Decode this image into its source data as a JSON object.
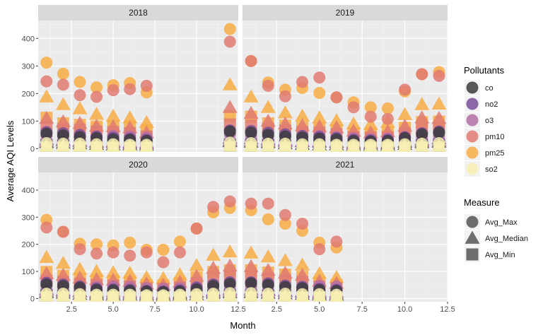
{
  "chart_data": {
    "type": "scatter",
    "xlabel": "Month",
    "ylabel": "Average AQI Levels",
    "xlim": [
      0.5,
      12.5
    ],
    "ylim": [
      -12,
      465
    ],
    "x_ticks": [
      2.5,
      5.0,
      7.5,
      10.0,
      12.5
    ],
    "x_tick_labels": [
      "2.5",
      "5.0",
      "7.5",
      "10.0",
      "12.5"
    ],
    "y_ticks": [
      0,
      100,
      200,
      300,
      400
    ],
    "y_tick_labels": [
      "0",
      "100",
      "200",
      "300",
      "400"
    ],
    "grid": true,
    "facet_by": "year",
    "facets": [
      {
        "label": "2018",
        "months": [
          1,
          2,
          3,
          4,
          5,
          6,
          7,
          12
        ],
        "series": {
          "pm25": {
            "Avg_Max": [
              312,
              272,
              242,
              222,
              230,
              238,
              204,
              434
            ],
            "Avg_Median": [
              188,
              160,
              145,
              125,
              118,
              112,
              95,
              232
            ],
            "Avg_Min": [
              112,
              92,
              86,
              80,
              82,
              80,
              66,
              118
            ]
          },
          "pm10": {
            "Avg_Max": [
              244,
              232,
              194,
              188,
              212,
              216,
              228,
              388
            ],
            "Avg_Median": [
              110,
              98,
              92,
              82,
              80,
              76,
              58,
              150
            ],
            "Avg_Min": [
              78,
              70,
              68,
              62,
              60,
              56,
              44,
              88
            ]
          },
          "o3": {
            "Avg_Max": [
              48,
              46,
              44,
              42,
              46,
              44,
              40,
              52
            ],
            "Avg_Median": [
              28,
              28,
              26,
              24,
              26,
              24,
              22,
              30
            ],
            "Avg_Min": [
              14,
              14,
              12,
              12,
              12,
              12,
              10,
              14
            ]
          },
          "no2": {
            "Avg_Max": [
              60,
              56,
              50,
              44,
              40,
              36,
              32,
              66
            ],
            "Avg_Median": [
              34,
              32,
              28,
              24,
              22,
              20,
              18,
              38
            ],
            "Avg_Min": [
              14,
              12,
              12,
              10,
              10,
              8,
              8,
              16
            ]
          },
          "co": {
            "Avg_Max": [
              54,
              48,
              42,
              38,
              34,
              32,
              28,
              62
            ],
            "Avg_Median": [
              22,
              20,
              18,
              16,
              14,
              14,
              12,
              26
            ],
            "Avg_Min": [
              8,
              8,
              6,
              6,
              6,
              6,
              4,
              10
            ]
          },
          "so2": {
            "Avg_Max": [
              20,
              18,
              18,
              16,
              16,
              14,
              14,
              22
            ],
            "Avg_Median": [
              10,
              10,
              10,
              8,
              8,
              8,
              8,
              12
            ],
            "Avg_Min": [
              4,
              4,
              4,
              4,
              4,
              4,
              4,
              5
            ]
          }
        }
      },
      {
        "label": "2019",
        "months": [
          1,
          2,
          3,
          4,
          5,
          6,
          7,
          8,
          9,
          10,
          11,
          12
        ],
        "series": {
          "pm25": {
            "Avg_Max": [
              318,
              240,
              214,
              220,
              202,
              186,
              168,
              150,
              146,
              208,
              270,
              278
            ],
            "Avg_Median": [
              188,
              150,
              130,
              118,
              112,
              102,
              90,
              88,
              96,
              124,
              160,
              162
            ],
            "Avg_Min": [
              116,
              92,
              84,
              76,
              74,
              66,
              56,
              56,
              58,
              76,
              96,
              98
            ]
          },
          "pm10": {
            "Avg_Max": [
              318,
              228,
              190,
              242,
              258,
              186,
              150,
              116,
              108,
              214,
              270,
              264
            ],
            "Avg_Median": [
              128,
              100,
              90,
              84,
              80,
              76,
              64,
              58,
              62,
              82,
              112,
              110
            ],
            "Avg_Min": [
              84,
              72,
              66,
              60,
              58,
              52,
              42,
              40,
              42,
              56,
              72,
              74
            ]
          },
          "o3": {
            "Avg_Max": [
              46,
              46,
              44,
              44,
              46,
              42,
              38,
              34,
              36,
              40,
              44,
              46
            ],
            "Avg_Median": [
              28,
              28,
              26,
              26,
              26,
              24,
              22,
              20,
              20,
              24,
              26,
              28
            ],
            "Avg_Min": [
              14,
              14,
              12,
              12,
              12,
              12,
              10,
              10,
              10,
              12,
              14,
              14
            ]
          },
          "no2": {
            "Avg_Max": [
              64,
              58,
              52,
              46,
              42,
              38,
              32,
              30,
              32,
              42,
              56,
              62
            ],
            "Avg_Median": [
              36,
              34,
              30,
              26,
              24,
              22,
              18,
              18,
              18,
              24,
              32,
              36
            ],
            "Avg_Min": [
              16,
              14,
              12,
              10,
              10,
              8,
              8,
              8,
              8,
              10,
              14,
              16
            ]
          },
          "co": {
            "Avg_Max": [
              58,
              50,
              44,
              40,
              36,
              34,
              28,
              26,
              28,
              38,
              52,
              58
            ],
            "Avg_Median": [
              24,
              22,
              18,
              16,
              14,
              14,
              12,
              12,
              12,
              16,
              22,
              24
            ],
            "Avg_Min": [
              8,
              8,
              6,
              6,
              6,
              6,
              4,
              4,
              4,
              6,
              8,
              8
            ]
          },
          "so2": {
            "Avg_Max": [
              20,
              18,
              18,
              16,
              16,
              14,
              14,
              14,
              14,
              16,
              18,
              20
            ],
            "Avg_Median": [
              10,
              10,
              10,
              8,
              8,
              8,
              8,
              8,
              8,
              8,
              10,
              10
            ],
            "Avg_Min": [
              4,
              4,
              4,
              4,
              4,
              4,
              4,
              4,
              4,
              4,
              4,
              4
            ]
          }
        }
      },
      {
        "label": "2020",
        "months": [
          1,
          2,
          3,
          4,
          5,
          6,
          7,
          8,
          9,
          10,
          11,
          12
        ],
        "series": {
          "pm25": {
            "Avg_Max": [
              290,
              246,
              202,
              200,
              196,
              206,
              180,
              180,
              210,
              258,
              318,
              334
            ],
            "Avg_Median": [
              152,
              130,
              108,
              100,
              96,
              94,
              78,
              74,
              88,
              122,
              160,
              172
            ],
            "Avg_Min": [
              98,
              84,
              72,
              66,
              64,
              62,
              50,
              48,
              56,
              78,
              98,
              104
            ]
          },
          "pm10": {
            "Avg_Max": [
              262,
              246,
              182,
              166,
              170,
              158,
              170,
              134,
              170,
              258,
              338,
              358
            ],
            "Avg_Median": [
              92,
              86,
              76,
              70,
              68,
              64,
              54,
              50,
              60,
              82,
              112,
              120
            ],
            "Avg_Min": [
              66,
              60,
              54,
              50,
              48,
              44,
              38,
              36,
              42,
              56,
              74,
              80
            ]
          },
          "o3": {
            "Avg_Max": [
              46,
              44,
              42,
              42,
              44,
              42,
              38,
              36,
              38,
              42,
              44,
              46
            ],
            "Avg_Median": [
              28,
              26,
              26,
              24,
              26,
              24,
              22,
              20,
              22,
              24,
              26,
              28
            ],
            "Avg_Min": [
              14,
              12,
              12,
              12,
              12,
              12,
              10,
              10,
              10,
              12,
              14,
              14
            ]
          },
          "no2": {
            "Avg_Max": [
              58,
              52,
              44,
              36,
              34,
              32,
              28,
              26,
              30,
              40,
              52,
              60
            ],
            "Avg_Median": [
              34,
              30,
              26,
              20,
              18,
              18,
              16,
              16,
              18,
              24,
              30,
              34
            ],
            "Avg_Min": [
              14,
              12,
              10,
              8,
              8,
              8,
              6,
              6,
              8,
              10,
              12,
              14
            ]
          },
          "co": {
            "Avg_Max": [
              52,
              46,
              40,
              32,
              30,
              28,
              26,
              24,
              26,
              34,
              46,
              54
            ],
            "Avg_Median": [
              22,
              20,
              16,
              14,
              12,
              12,
              10,
              10,
              12,
              14,
              20,
              22
            ],
            "Avg_Min": [
              8,
              6,
              6,
              4,
              4,
              4,
              4,
              4,
              4,
              6,
              8,
              8
            ]
          },
          "so2": {
            "Avg_Max": [
              18,
              18,
              16,
              14,
              14,
              14,
              12,
              12,
              14,
              16,
              18,
              20
            ],
            "Avg_Median": [
              10,
              10,
              8,
              8,
              8,
              8,
              6,
              6,
              8,
              8,
              10,
              10
            ],
            "Avg_Min": [
              4,
              4,
              4,
              4,
              4,
              4,
              4,
              4,
              4,
              4,
              4,
              4
            ]
          }
        }
      },
      {
        "label": "2021",
        "months": [
          1,
          2,
          3,
          4,
          5,
          6
        ],
        "series": {
          "pm25": {
            "Avg_Max": [
              326,
              292,
              276,
              250,
              206,
              188
            ],
            "Avg_Median": [
              168,
              154,
              140,
              124,
              92,
              78
            ],
            "Avg_Min": [
              104,
              96,
              88,
              80,
              60,
              50
            ]
          },
          "pm10": {
            "Avg_Max": [
              350,
              350,
              308,
              276,
              182,
              210
            ],
            "Avg_Median": [
              118,
              104,
              94,
              86,
              64,
              56
            ],
            "Avg_Min": [
              80,
              72,
              66,
              60,
              44,
              38
            ]
          },
          "o3": {
            "Avg_Max": [
              46,
              46,
              44,
              44,
              46,
              44
            ],
            "Avg_Median": [
              28,
              28,
              26,
              26,
              26,
              24
            ],
            "Avg_Min": [
              14,
              14,
              12,
              12,
              12,
              12
            ]
          },
          "no2": {
            "Avg_Max": [
              60,
              56,
              48,
              42,
              36,
              32
            ],
            "Avg_Median": [
              34,
              32,
              28,
              24,
              20,
              18
            ],
            "Avg_Min": [
              14,
              12,
              12,
              10,
              8,
              8
            ]
          },
          "co": {
            "Avg_Max": [
              56,
              50,
              42,
              38,
              32,
              28
            ],
            "Avg_Median": [
              22,
              20,
              18,
              16,
              14,
              12
            ],
            "Avg_Min": [
              8,
              8,
              6,
              6,
              4,
              4
            ]
          },
          "so2": {
            "Avg_Max": [
              20,
              18,
              18,
              16,
              16,
              14
            ],
            "Avg_Median": [
              10,
              10,
              10,
              8,
              8,
              8
            ],
            "Avg_Min": [
              4,
              4,
              4,
              4,
              4,
              4
            ]
          }
        }
      }
    ],
    "legend": {
      "position": "right",
      "pollutants_title": "Pollutants",
      "pollutants": [
        {
          "key": "co",
          "label": "co",
          "color": "#3c3c3c"
        },
        {
          "key": "no2",
          "label": "no2",
          "color": "#7b4e9a"
        },
        {
          "key": "o3",
          "label": "o3",
          "color": "#b36fa5"
        },
        {
          "key": "pm10",
          "label": "pm10",
          "color": "#e07b72"
        },
        {
          "key": "pm25",
          "label": "pm25",
          "color": "#f8ad45"
        },
        {
          "key": "so2",
          "label": "so2",
          "color": "#f8f0b4"
        }
      ],
      "measure_title": "Measure",
      "measures": [
        {
          "key": "Avg_Max",
          "label": "Avg_Max",
          "shape": "circle"
        },
        {
          "key": "Avg_Median",
          "label": "Avg_Median",
          "shape": "triangle"
        },
        {
          "key": "Avg_Min",
          "label": "Avg_Min",
          "shape": "square"
        }
      ]
    }
  }
}
